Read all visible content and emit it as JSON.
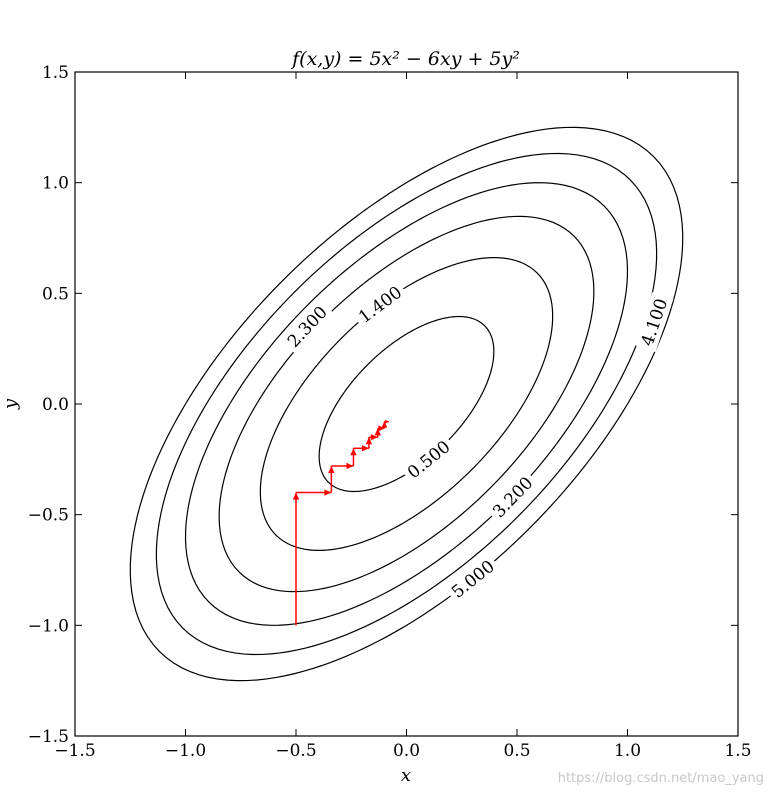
{
  "chart_data": {
    "type": "contour",
    "title": "f(x,y) = 5x² − 6xy + 5y²",
    "xlabel": "x",
    "ylabel": "y",
    "xlim": [
      -1.5,
      1.5
    ],
    "ylim": [
      -1.5,
      1.5
    ],
    "xticks": [
      "−1.5",
      "−1.0",
      "−0.5",
      "0.0",
      "0.5",
      "1.0",
      "1.5"
    ],
    "yticks": [
      "−1.5",
      "−1.0",
      "−0.5",
      "0.0",
      "0.5",
      "1.0",
      "1.5"
    ],
    "function": {
      "a": 5,
      "b": -6,
      "c": 5
    },
    "levels": [
      0.5,
      1.4,
      2.3,
      3.2,
      4.1,
      5.0
    ],
    "contour_labels": [
      {
        "text": "0.500",
        "level": 0.5,
        "x": 0.1,
        "y": -0.25
      },
      {
        "text": "1.400",
        "level": 1.4,
        "x": -0.12,
        "y": 0.45
      },
      {
        "text": "2.300",
        "level": 2.3,
        "x": -0.45,
        "y": 0.35
      },
      {
        "text": "3.200",
        "level": 3.2,
        "x": 0.48,
        "y": -0.42
      },
      {
        "text": "4.100",
        "level": 4.1,
        "x": 1.12,
        "y": 0.37
      },
      {
        "text": "5.000",
        "level": 5.0,
        "x": 0.3,
        "y": -0.79
      }
    ],
    "path_color": "#ff0000",
    "path": [
      [
        -0.5,
        -1.0
      ],
      [
        -0.5,
        -0.4
      ],
      [
        -0.34,
        -0.4
      ],
      [
        -0.34,
        -0.28
      ],
      [
        -0.24,
        -0.28
      ],
      [
        -0.24,
        -0.2
      ],
      [
        -0.17,
        -0.2
      ],
      [
        -0.17,
        -0.15
      ],
      [
        -0.13,
        -0.15
      ],
      [
        -0.13,
        -0.11
      ],
      [
        -0.1,
        -0.11
      ],
      [
        -0.1,
        -0.08
      ],
      [
        -0.08,
        -0.08
      ]
    ],
    "grid": false
  },
  "watermark": "https://blog.csdn.net/mao_yang"
}
